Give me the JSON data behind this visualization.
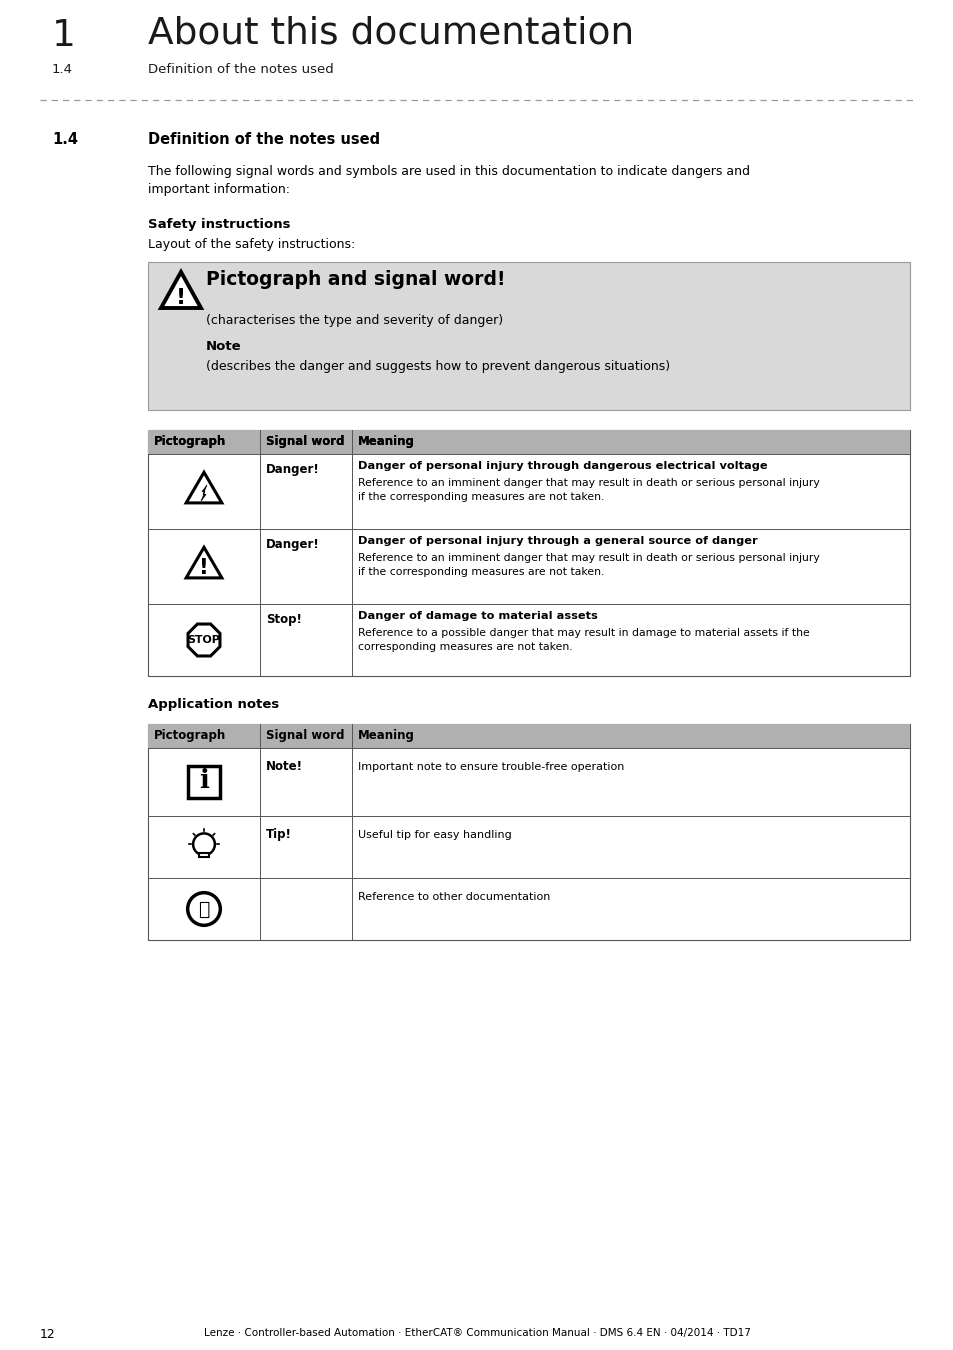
{
  "page_title_num": "1",
  "page_title": "About this documentation",
  "page_subtitle_num": "1.4",
  "page_subtitle": "Definition of the notes used",
  "section_num": "1.4",
  "section_title": "Definition of the notes used",
  "intro_text": "The following signal words and symbols are used in this documentation to indicate dangers and\nimportant information:",
  "safety_instr_title": "Safety instructions",
  "safety_layout_text": "Layout of the safety instructions:",
  "warning_box_bg": "#d9d9d9",
  "warning_box_title": "Pictograph and signal word!",
  "warning_box_char1": "(characterises the type and severity of danger)",
  "warning_box_note_label": "Note",
  "warning_box_note_text": "(describes the danger and suggests how to prevent dangerous situations)",
  "table1_header": [
    "Pictograph",
    "Signal word",
    "Meaning"
  ],
  "table1_rows": [
    {
      "signal_word": "Danger!",
      "meaning_bold": "Danger of personal injury through dangerous electrical voltage",
      "meaning_normal": "Reference to an imminent danger that may result in death or serious personal injury\nif the corresponding measures are not taken.",
      "icon_type": "warning_electrical"
    },
    {
      "signal_word": "Danger!",
      "meaning_bold": "Danger of personal injury through a general source of danger",
      "meaning_normal": "Reference to an imminent danger that may result in death or serious personal injury\nif the corresponding measures are not taken.",
      "icon_type": "warning_general"
    },
    {
      "signal_word": "Stop!",
      "meaning_bold": "Danger of damage to material assets",
      "meaning_normal": "Reference to a possible danger that may result in damage to material assets if the\ncorresponding measures are not taken.",
      "icon_type": "stop"
    }
  ],
  "app_notes_title": "Application notes",
  "table2_header": [
    "Pictograph",
    "Signal word",
    "Meaning"
  ],
  "table2_rows": [
    {
      "signal_word": "Note!",
      "meaning_normal": "Important note to ensure trouble-free operation",
      "icon_type": "info"
    },
    {
      "signal_word": "Tip!",
      "meaning_normal": "Useful tip for easy handling",
      "icon_type": "tip"
    },
    {
      "signal_word": "",
      "meaning_normal": "Reference to other documentation",
      "icon_type": "ref"
    }
  ],
  "footer_page": "12",
  "footer_text": "Lenze · Controller-based Automation · EtherCAT® Communication Manual · DMS 6.4 EN · 04/2014 · TD17",
  "bg_color": "#ffffff",
  "text_color": "#000000",
  "header_bg": "#b0b0b0",
  "table_line_color": "#555555"
}
